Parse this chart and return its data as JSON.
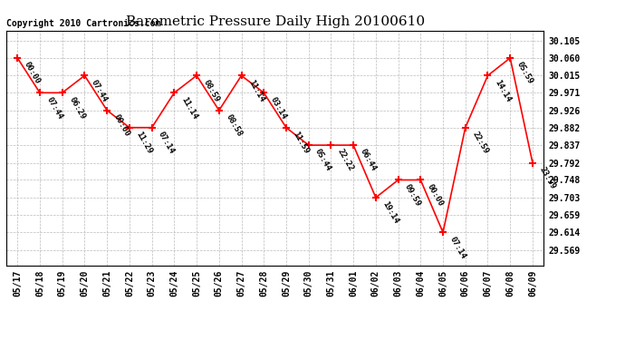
{
  "title": "Barometric Pressure Daily High 20100610",
  "copyright": "Copyright 2010 Cartronics.com",
  "background_color": "#ffffff",
  "grid_color": "#bbbbbb",
  "line_color": "#ff0000",
  "marker_color": "#ff0000",
  "text_color": "#000000",
  "x_labels": [
    "05/17",
    "05/18",
    "05/19",
    "05/20",
    "05/21",
    "05/22",
    "05/23",
    "05/24",
    "05/25",
    "05/26",
    "05/27",
    "05/28",
    "05/29",
    "05/30",
    "05/31",
    "06/01",
    "06/02",
    "06/03",
    "06/04",
    "06/05",
    "06/06",
    "06/07",
    "06/08",
    "06/09"
  ],
  "y_ticks": [
    29.569,
    29.614,
    29.659,
    29.703,
    29.748,
    29.792,
    29.837,
    29.882,
    29.926,
    29.971,
    30.015,
    30.06,
    30.105
  ],
  "data_points": [
    {
      "date": "05/17",
      "value": 30.06,
      "time_label": "00:00"
    },
    {
      "date": "05/18",
      "value": 29.971,
      "time_label": "07:44"
    },
    {
      "date": "05/19",
      "value": 29.971,
      "time_label": "06:29"
    },
    {
      "date": "05/20",
      "value": 30.015,
      "time_label": "07:44"
    },
    {
      "date": "05/21",
      "value": 29.926,
      "time_label": "00:00"
    },
    {
      "date": "05/22",
      "value": 29.882,
      "time_label": "11:29"
    },
    {
      "date": "05/23",
      "value": 29.882,
      "time_label": "07:14"
    },
    {
      "date": "05/24",
      "value": 29.971,
      "time_label": "11:14"
    },
    {
      "date": "05/25",
      "value": 30.015,
      "time_label": "08:59"
    },
    {
      "date": "05/26",
      "value": 29.926,
      "time_label": "08:58"
    },
    {
      "date": "05/27",
      "value": 30.015,
      "time_label": "11:14"
    },
    {
      "date": "05/28",
      "value": 29.971,
      "time_label": "03:14"
    },
    {
      "date": "05/29",
      "value": 29.882,
      "time_label": "11:59"
    },
    {
      "date": "05/30",
      "value": 29.837,
      "time_label": "05:44"
    },
    {
      "date": "05/31",
      "value": 29.837,
      "time_label": "22:22"
    },
    {
      "date": "06/01",
      "value": 29.837,
      "time_label": "06:44"
    },
    {
      "date": "06/02",
      "value": 29.703,
      "time_label": "19:14"
    },
    {
      "date": "06/03",
      "value": 29.748,
      "time_label": "09:59"
    },
    {
      "date": "06/04",
      "value": 29.748,
      "time_label": "00:00"
    },
    {
      "date": "06/05",
      "value": 29.614,
      "time_label": "07:14"
    },
    {
      "date": "06/06",
      "value": 29.882,
      "time_label": "22:59"
    },
    {
      "date": "06/07",
      "value": 30.015,
      "time_label": "14:14"
    },
    {
      "date": "06/08",
      "value": 30.06,
      "time_label": "05:59"
    },
    {
      "date": "06/09",
      "value": 29.792,
      "time_label": "23:59"
    }
  ],
  "ylim": [
    29.53,
    30.13
  ],
  "xlim": [
    -0.5,
    23.5
  ],
  "title_fontsize": 11,
  "label_fontsize": 6.5,
  "tick_fontsize": 7,
  "copyright_fontsize": 7
}
